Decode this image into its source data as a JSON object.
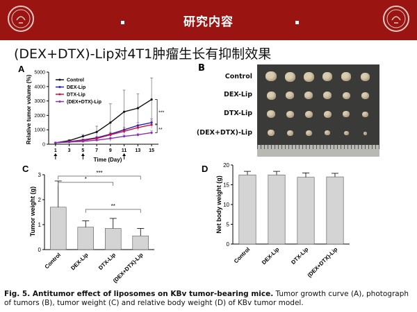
{
  "banner": {
    "title": "研究内容"
  },
  "slide_title": "(DEX+DTX)-Lip对4T1肿瘤生长有抑制效果",
  "panels": {
    "a": "A",
    "b": "B",
    "c": "C",
    "d": "D"
  },
  "photo": {
    "rows": [
      "Control",
      "DEX-Lip",
      "DTX-Lip",
      "(DEX+DTX)-Lip"
    ]
  },
  "caption": {
    "bold": "Fig. 5. Antitumor effect of liposomes on KBv tumor-bearing mice.",
    "text": " Tumor growth curve (A), photograph of tumors (B), tumor weight (C) and relative body weight (D) of KBv tumor model."
  },
  "colors": {
    "banner": "#9a1512",
    "control": "#111111",
    "dex": "#2020c0",
    "dtx": "#d0103a",
    "combo": "#8a2fb0",
    "bar": "#d4d4d4"
  },
  "chart_data": [
    {
      "type": "line",
      "ylabel": "Relative tumor volume (%)",
      "xlabel": "Time (Day)",
      "x": [
        1,
        3,
        5,
        7,
        9,
        11,
        13,
        15
      ],
      "xticks": [
        1,
        3,
        5,
        7,
        9,
        11,
        13,
        15
      ],
      "ylim": [
        0,
        5000
      ],
      "yticks": [
        0,
        1000,
        2000,
        3000,
        4000,
        5000
      ],
      "dosing_days": [
        1,
        5,
        11
      ],
      "series": [
        {
          "name": "Control",
          "color": "#111111",
          "values": [
            100,
            250,
            550,
            850,
            1500,
            2250,
            2500,
            3100
          ],
          "err": [
            20,
            60,
            120,
            400,
            1300,
            1500,
            1000,
            1500
          ]
        },
        {
          "name": "DEX-Lip",
          "color": "#2020c0",
          "values": [
            100,
            180,
            300,
            450,
            700,
            1000,
            1300,
            1500
          ],
          "err": [
            15,
            30,
            50,
            80,
            120,
            180,
            200,
            250
          ]
        },
        {
          "name": "DTX-Lip",
          "color": "#d0103a",
          "values": [
            100,
            170,
            260,
            400,
            650,
            900,
            1150,
            1350
          ],
          "err": [
            15,
            30,
            50,
            80,
            120,
            160,
            200,
            250
          ]
        },
        {
          "name": "(DEX+DTX)-Lip",
          "color": "#8a2fb0",
          "values": [
            100,
            150,
            200,
            280,
            400,
            550,
            650,
            800
          ],
          "err": [
            15,
            25,
            40,
            50,
            70,
            90,
            110,
            150
          ]
        }
      ],
      "significance": [
        "***",
        "**"
      ]
    },
    {
      "type": "bar",
      "ylabel": "Tumor weight (g)",
      "categories": [
        "Control",
        "DEX-Lip",
        "DTX-Lip",
        "(DEX+DTX)-Lip"
      ],
      "values": [
        1.7,
        0.9,
        0.85,
        0.55
      ],
      "err": [
        1.05,
        0.25,
        0.4,
        0.3
      ],
      "ylim": [
        0,
        3
      ],
      "yticks": [
        0,
        1,
        2,
        3
      ],
      "significance": [
        "*",
        "***",
        "**"
      ]
    },
    {
      "type": "bar",
      "ylabel": "Net body weight (g)",
      "categories": [
        "Control",
        "DEX-Lip",
        "DTX-Lip",
        "(DEX+DTX)-Lip"
      ],
      "values": [
        17.5,
        17.5,
        16.9,
        17.0
      ],
      "err": [
        0.9,
        0.9,
        1.1,
        0.9
      ],
      "ylim": [
        0,
        20
      ],
      "yticks": [
        0,
        5,
        10,
        15,
        20
      ]
    }
  ]
}
